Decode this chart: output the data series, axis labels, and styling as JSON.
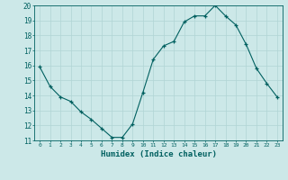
{
  "x": [
    0,
    1,
    2,
    3,
    4,
    5,
    6,
    7,
    8,
    9,
    10,
    11,
    12,
    13,
    14,
    15,
    16,
    17,
    18,
    19,
    20,
    21,
    22,
    23
  ],
  "y": [
    15.9,
    14.6,
    13.9,
    13.6,
    12.9,
    12.4,
    11.8,
    11.2,
    11.2,
    12.1,
    14.2,
    16.4,
    17.3,
    17.6,
    18.9,
    19.3,
    19.3,
    20.0,
    19.3,
    18.7,
    17.4,
    15.8,
    14.8,
    13.9
  ],
  "xlabel": "Humidex (Indice chaleur)",
  "xlim": [
    -0.5,
    23.5
  ],
  "ylim": [
    11,
    20
  ],
  "yticks": [
    11,
    12,
    13,
    14,
    15,
    16,
    17,
    18,
    19,
    20
  ],
  "xticks": [
    0,
    1,
    2,
    3,
    4,
    5,
    6,
    7,
    8,
    9,
    10,
    11,
    12,
    13,
    14,
    15,
    16,
    17,
    18,
    19,
    20,
    21,
    22,
    23
  ],
  "line_color": "#006060",
  "marker_color": "#006060",
  "bg_color": "#cce8e8",
  "grid_color": "#b0d4d4",
  "axis_color": "#006060",
  "tick_color": "#006060",
  "label_color": "#006060"
}
